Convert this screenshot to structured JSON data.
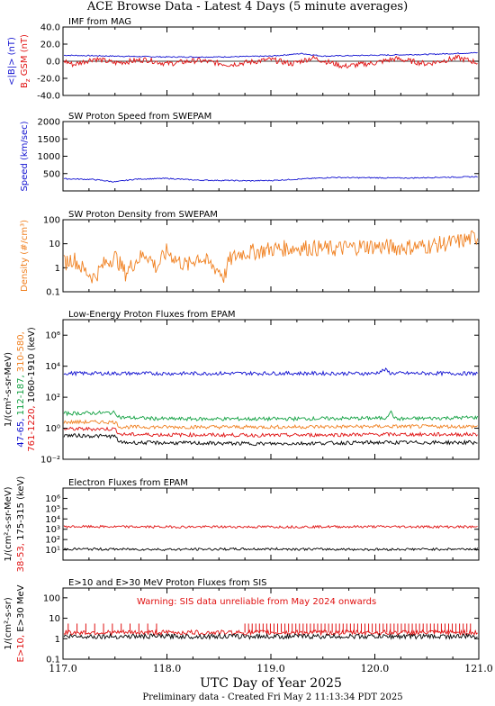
{
  "header": {
    "title": "ACE Browse Data - Latest 4 Days (5 minute averages)"
  },
  "footer": {
    "note": "Preliminary data - Created Fri May  2 11:13:34 PDT 2025"
  },
  "colors": {
    "black": "#000000",
    "red": "#e01010",
    "blue": "#1010d0",
    "green": "#10a040",
    "orange": "#f08020"
  },
  "chart_data": [
    {
      "type": "line",
      "title": "IMF from MAG",
      "ylabel_parts": [
        "<|B|> (nT)",
        "B",
        "GSM (nT)"
      ],
      "ylim": [
        -40,
        40
      ],
      "yscale": "linear",
      "yticks": [
        "-40.0",
        "-20.0",
        "0.0",
        "20.0",
        "40.0"
      ],
      "xlim": [
        117.0,
        121.0
      ],
      "series": [
        {
          "label": "<|B|>",
          "color": "blue",
          "points": [
            [
              117.0,
              7
            ],
            [
              117.5,
              6
            ],
            [
              118.0,
              5
            ],
            [
              118.5,
              5
            ],
            [
              119.0,
              6
            ],
            [
              119.3,
              9
            ],
            [
              119.5,
              6
            ],
            [
              120.0,
              7
            ],
            [
              120.5,
              8
            ],
            [
              121.0,
              10
            ]
          ]
        },
        {
          "label": "Bz GSM",
          "color": "red",
          "points": [
            [
              117.0,
              1
            ],
            [
              117.1,
              -4
            ],
            [
              117.3,
              3
            ],
            [
              117.5,
              -2
            ],
            [
              117.8,
              2
            ],
            [
              118.0,
              -3
            ],
            [
              118.3,
              1
            ],
            [
              118.6,
              -4
            ],
            [
              119.0,
              2
            ],
            [
              119.2,
              -3
            ],
            [
              119.4,
              4
            ],
            [
              119.7,
              -6
            ],
            [
              120.0,
              -2
            ],
            [
              120.2,
              3
            ],
            [
              120.5,
              -3
            ],
            [
              120.8,
              4
            ],
            [
              121.0,
              -2
            ]
          ]
        }
      ]
    },
    {
      "type": "line",
      "title": "SW Proton Speed from SWEPAM",
      "ylabel": "Speed (km/sec)",
      "ylim": [
        0,
        2000
      ],
      "yscale": "linear",
      "yticks": [
        "500",
        "1000",
        "1500",
        "2000"
      ],
      "xlim": [
        117.0,
        121.0
      ],
      "series": [
        {
          "label": "Speed",
          "color": "blue",
          "points": [
            [
              117.0,
              350
            ],
            [
              117.3,
              330
            ],
            [
              117.5,
              260
            ],
            [
              117.7,
              340
            ],
            [
              118.0,
              360
            ],
            [
              118.3,
              310
            ],
            [
              118.6,
              300
            ],
            [
              118.8,
              290
            ],
            [
              119.0,
              300
            ],
            [
              119.2,
              330
            ],
            [
              119.4,
              360
            ],
            [
              119.6,
              390
            ],
            [
              119.8,
              380
            ],
            [
              120.0,
              380
            ],
            [
              120.3,
              370
            ],
            [
              120.6,
              390
            ],
            [
              121.0,
              410
            ]
          ]
        }
      ]
    },
    {
      "type": "line",
      "title": "SW Proton Density from SWEPAM",
      "ylabel": "Density (#/cm³)",
      "ylim": [
        0.1,
        100
      ],
      "yscale": "log",
      "yticks": [
        "0.1",
        "1",
        "10",
        "100"
      ],
      "xlim": [
        117.0,
        121.0
      ],
      "series": [
        {
          "label": "Density",
          "color": "orange",
          "points": [
            [
              117.0,
              1.5
            ],
            [
              117.1,
              2.5
            ],
            [
              117.2,
              0.8
            ],
            [
              117.3,
              0.4
            ],
            [
              117.4,
              1.5
            ],
            [
              117.5,
              3
            ],
            [
              117.6,
              0.6
            ],
            [
              117.7,
              2
            ],
            [
              117.8,
              4
            ],
            [
              117.9,
              1
            ],
            [
              118.0,
              5
            ],
            [
              118.1,
              2
            ],
            [
              118.2,
              1.2
            ],
            [
              118.3,
              3
            ],
            [
              118.4,
              1.5
            ],
            [
              118.5,
              0.8
            ],
            [
              118.55,
              0.4
            ],
            [
              118.6,
              2
            ],
            [
              118.7,
              4
            ],
            [
              118.9,
              5
            ],
            [
              119.0,
              6
            ],
            [
              119.3,
              7
            ],
            [
              119.6,
              6
            ],
            [
              119.9,
              8
            ],
            [
              120.2,
              7
            ],
            [
              120.5,
              8
            ],
            [
              120.8,
              12
            ],
            [
              121.0,
              20
            ]
          ]
        }
      ]
    },
    {
      "type": "line",
      "title": "Low-Energy Proton Fluxes from EPAM",
      "ylabel": "1/(cm²-s-sr-MeV)",
      "ylabel_energy": {
        "unit": "(keV)",
        "ranges": [
          {
            "label": "47-65,",
            "color": "blue"
          },
          {
            "label": "112-187,",
            "color": "green"
          },
          {
            "label": "310-580,",
            "color": "orange"
          },
          {
            "label": "761-1220,",
            "color": "red"
          },
          {
            "label": "1060-1910",
            "color": "black"
          }
        ]
      },
      "ylim": [
        0.01,
        10000000
      ],
      "yscale": "log",
      "yticks": [
        "10⁻²",
        "10⁰",
        "10²",
        "10⁴",
        "10⁶"
      ],
      "xlim": [
        117.0,
        121.0
      ],
      "series": [
        {
          "label": "47-65",
          "color": "blue",
          "points": [
            [
              117.0,
              3500
            ],
            [
              118.0,
              3400
            ],
            [
              119.0,
              3500
            ],
            [
              120.0,
              3400
            ],
            [
              120.1,
              6000
            ],
            [
              120.15,
              3500
            ],
            [
              121.0,
              3400
            ]
          ]
        },
        {
          "label": "112-187",
          "color": "green",
          "points": [
            [
              117.0,
              9
            ],
            [
              117.5,
              10
            ],
            [
              117.55,
              5
            ],
            [
              118.0,
              4
            ],
            [
              119.0,
              4
            ],
            [
              120.1,
              4.5
            ],
            [
              120.15,
              12
            ],
            [
              120.2,
              4
            ],
            [
              121.0,
              5
            ],
            [
              121.0,
              8
            ]
          ]
        },
        {
          "label": "310-580",
          "color": "orange",
          "points": [
            [
              117.0,
              2.5
            ],
            [
              117.5,
              2.5
            ],
            [
              117.55,
              1.2
            ],
            [
              119.0,
              1.2
            ],
            [
              120.0,
              1.3
            ],
            [
              121.0,
              1.3
            ]
          ]
        },
        {
          "label": "761-1220",
          "color": "red",
          "points": [
            [
              117.0,
              0.9
            ],
            [
              117.5,
              0.9
            ],
            [
              117.55,
              0.4
            ],
            [
              119.0,
              0.35
            ],
            [
              120.0,
              0.4
            ],
            [
              121.0,
              0.4
            ]
          ]
        },
        {
          "label": "1060-1910",
          "color": "black",
          "points": [
            [
              117.0,
              0.35
            ],
            [
              117.5,
              0.3
            ],
            [
              117.55,
              0.12
            ],
            [
              119.0,
              0.1
            ],
            [
              120.0,
              0.12
            ],
            [
              121.0,
              0.12
            ]
          ]
        }
      ]
    },
    {
      "type": "line",
      "title": "Electron Fluxes from EPAM",
      "ylabel": "1/(cm²-s-sr-MeV)",
      "ylabel_energy": {
        "unit": "(keV)",
        "ranges": [
          {
            "label": "38-53,",
            "color": "red"
          },
          {
            "label": "175-315",
            "color": "black"
          }
        ]
      },
      "ylim": [
        1,
        10000000
      ],
      "yscale": "log",
      "yticks": [
        "10¹",
        "10²",
        "10³",
        "10⁴",
        "10⁵",
        "10⁶"
      ],
      "xlim": [
        117.0,
        121.0
      ],
      "series": [
        {
          "label": "38-53",
          "color": "red",
          "points": [
            [
              117.0,
              1800
            ],
            [
              118.0,
              1700
            ],
            [
              119.0,
              1700
            ],
            [
              120.0,
              1800
            ],
            [
              121.0,
              1700
            ]
          ]
        },
        {
          "label": "175-315",
          "color": "black",
          "points": [
            [
              117.0,
              12
            ],
            [
              118.0,
              11
            ],
            [
              119.0,
              12
            ],
            [
              120.0,
              11
            ],
            [
              121.0,
              12
            ]
          ]
        }
      ]
    },
    {
      "type": "line",
      "title": "E>10 and E>30 MeV Proton Fluxes from SIS",
      "ylabel": "1/(cm²-s-sr)",
      "ylabel_energy": {
        "unit": "MeV",
        "ranges": [
          {
            "label": "E>10,",
            "color": "red"
          },
          {
            "label": "E>30",
            "color": "black"
          }
        ]
      },
      "annotation": "Warning: SIS data unreliable from May 2024 onwards",
      "ylim": [
        0.1,
        300
      ],
      "yscale": "log",
      "yticks": [
        "0.1",
        "1",
        "10",
        "100"
      ],
      "xlim": [
        117.0,
        121.0
      ],
      "series": [
        {
          "label": "E>10",
          "color": "red",
          "points": [
            [
              117.0,
              2.0
            ],
            [
              121.0,
              2.0
            ]
          ]
        },
        {
          "label": "E>30",
          "color": "black",
          "points": [
            [
              117.0,
              1.3
            ],
            [
              121.0,
              1.3
            ]
          ]
        }
      ]
    }
  ],
  "xaxis": {
    "ticks": [
      "117.0",
      "118.0",
      "119.0",
      "120.0",
      "121.0"
    ],
    "label": "UTC Day of Year 2025"
  }
}
